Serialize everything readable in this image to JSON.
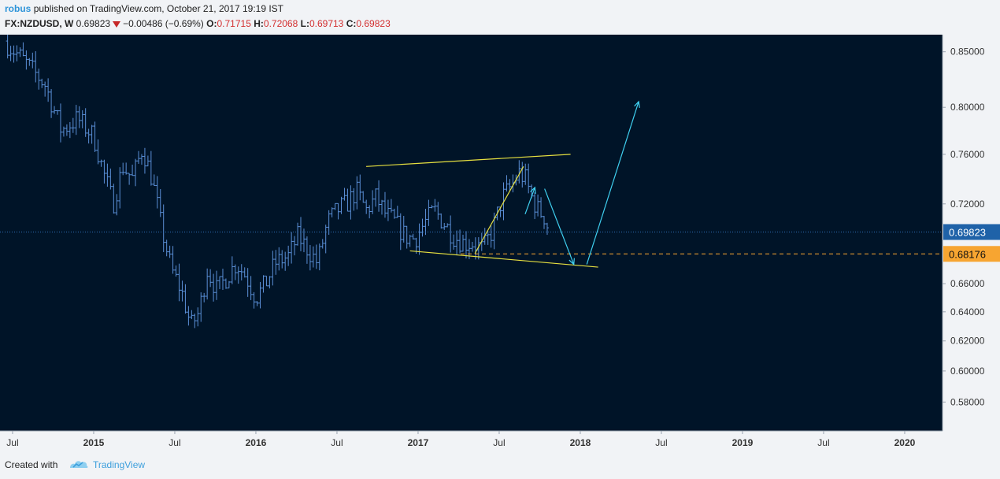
{
  "header": {
    "author": "robus",
    "published_text": "published on TradingView.com, October 21, 2017 19:19 IST",
    "symbol": "FX:NZDUSD, W",
    "last": "0.69823",
    "change": "−0.00486 (−0.69%)",
    "o_label": "O:",
    "o_value": "0.71715",
    "h_label": "H:",
    "h_value": "0.72068",
    "l_label": "L:",
    "l_value": "0.69713",
    "c_label": "C:",
    "c_value": "0.69823"
  },
  "footer": {
    "created_with": "Created with",
    "brand": "TradingView"
  },
  "colors": {
    "background": "#001428",
    "bars": "#5a8fd6",
    "trendlines": "#e6e040",
    "arrows": "#3fd0f0",
    "price_badge": "#1f62a8",
    "level_badge": "#f7a531"
  },
  "chart_data": {
    "type": "bar",
    "symbol": "FX:NZDUSD",
    "interval": "W",
    "x_ticks": [
      {
        "label": "Jul",
        "t": 2014.5
      },
      {
        "label": "2015",
        "t": 2015.0
      },
      {
        "label": "Jul",
        "t": 2015.5
      },
      {
        "label": "2016",
        "t": 2016.0
      },
      {
        "label": "Jul",
        "t": 2016.5
      },
      {
        "label": "2017",
        "t": 2017.0
      },
      {
        "label": "Jul",
        "t": 2017.5
      },
      {
        "label": "2018",
        "t": 2018.0
      },
      {
        "label": "Jul",
        "t": 2018.5
      },
      {
        "label": "2019",
        "t": 2019.0
      },
      {
        "label": "Jul",
        "t": 2019.5
      },
      {
        "label": "2020",
        "t": 2020.0
      }
    ],
    "y_ticks": [
      "0.58000",
      "0.60000",
      "0.62000",
      "0.64000",
      "0.66000",
      "0.72000",
      "0.76000",
      "0.80000",
      "0.85000"
    ],
    "y_axis_scale": "log",
    "ylim": [
      0.562,
      0.866
    ],
    "current_price": "0.69823",
    "marked_level": "0.68176",
    "close_path": [
      [
        2014.45,
        0.86
      ],
      [
        2014.58,
        0.84
      ],
      [
        2014.7,
        0.82
      ],
      [
        2014.8,
        0.78
      ],
      [
        2014.9,
        0.79
      ],
      [
        2015.0,
        0.775
      ],
      [
        2015.06,
        0.745
      ],
      [
        2015.12,
        0.72
      ],
      [
        2015.18,
        0.75
      ],
      [
        2015.24,
        0.74
      ],
      [
        2015.3,
        0.765
      ],
      [
        2015.36,
        0.74
      ],
      [
        2015.42,
        0.7
      ],
      [
        2015.48,
        0.67
      ],
      [
        2015.54,
        0.655
      ],
      [
        2015.6,
        0.63
      ],
      [
        2015.65,
        0.64
      ],
      [
        2015.7,
        0.67
      ],
      [
        2015.76,
        0.655
      ],
      [
        2015.82,
        0.665
      ],
      [
        2015.88,
        0.675
      ],
      [
        2015.94,
        0.665
      ],
      [
        2016.0,
        0.65
      ],
      [
        2016.06,
        0.66
      ],
      [
        2016.12,
        0.675
      ],
      [
        2016.2,
        0.68
      ],
      [
        2016.26,
        0.695
      ],
      [
        2016.32,
        0.685
      ],
      [
        2016.38,
        0.675
      ],
      [
        2016.44,
        0.705
      ],
      [
        2016.5,
        0.715
      ],
      [
        2016.56,
        0.72
      ],
      [
        2016.62,
        0.73
      ],
      [
        2016.68,
        0.715
      ],
      [
        2016.74,
        0.725
      ],
      [
        2016.8,
        0.712
      ],
      [
        2016.86,
        0.705
      ],
      [
        2016.92,
        0.695
      ],
      [
        2016.98,
        0.693
      ],
      [
        2017.04,
        0.705
      ],
      [
        2017.1,
        0.715
      ],
      [
        2017.16,
        0.705
      ],
      [
        2017.22,
        0.695
      ],
      [
        2017.28,
        0.69
      ],
      [
        2017.34,
        0.69
      ],
      [
        2017.4,
        0.685
      ],
      [
        2017.46,
        0.7
      ],
      [
        2017.52,
        0.725
      ],
      [
        2017.58,
        0.735
      ],
      [
        2017.62,
        0.745
      ],
      [
        2017.66,
        0.74
      ],
      [
        2017.7,
        0.725
      ],
      [
        2017.74,
        0.715
      ],
      [
        2017.78,
        0.71
      ],
      [
        2017.81,
        0.698
      ]
    ],
    "trendlines": [
      {
        "name": "upper",
        "points": [
          [
            2016.68,
            0.75
          ],
          [
            2017.94,
            0.76
          ]
        ]
      },
      {
        "name": "lower",
        "points": [
          [
            2016.95,
            0.684
          ],
          [
            2018.11,
            0.672
          ]
        ]
      },
      {
        "name": "rising",
        "points": [
          [
            2017.35,
            0.682
          ],
          [
            2017.65,
            0.75
          ]
        ]
      }
    ],
    "arrows": [
      {
        "points": [
          [
            2017.66,
            0.712
          ],
          [
            2017.72,
            0.733
          ]
        ]
      },
      {
        "points": [
          [
            2017.78,
            0.732
          ],
          [
            2017.96,
            0.674
          ]
        ]
      },
      {
        "points": [
          [
            2018.04,
            0.674
          ],
          [
            2018.36,
            0.805
          ]
        ]
      }
    ]
  }
}
